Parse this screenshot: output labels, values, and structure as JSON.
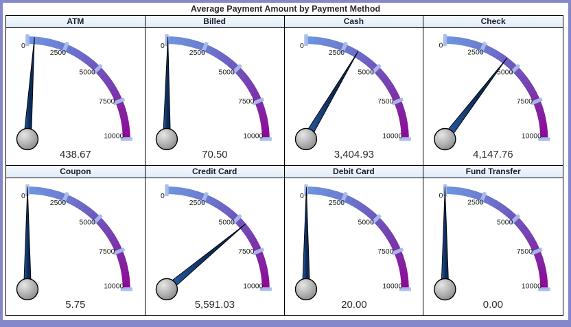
{
  "title": "Average Payment Amount by Payment Method",
  "gauge": {
    "min": 0,
    "max": 10000,
    "sweep_degrees": 90,
    "ticks": [
      0,
      2500,
      5000,
      7500,
      10000
    ],
    "tick_labels": [
      "0",
      "2500",
      "5000",
      "7500",
      "10000"
    ]
  },
  "panels": [
    {
      "label": "ATM",
      "value": 438.67,
      "display": "438.67"
    },
    {
      "label": "Billed",
      "value": 70.5,
      "display": "70.50"
    },
    {
      "label": "Cash",
      "value": 3404.93,
      "display": "3,404.93"
    },
    {
      "label": "Check",
      "value": 4147.76,
      "display": "4,147.76"
    },
    {
      "label": "Coupon",
      "value": 5.75,
      "display": "5.75"
    },
    {
      "label": "Credit Card",
      "value": 5591.03,
      "display": "5,591.03"
    },
    {
      "label": "Debit Card",
      "value": 20.0,
      "display": "20.00"
    },
    {
      "label": "Fund Transfer",
      "value": 0.0,
      "display": "0.00"
    }
  ],
  "colors": {
    "frame_border": "#8487ca",
    "grid_border": "#000000",
    "header_bg_top": "#f2f8fd",
    "header_bg_bottom": "#e2edf8",
    "header_text": "#1c1c30",
    "title_text": "#2b2b2b",
    "value_text": "#2b2b2b",
    "tick_label_text": "#1a1a1a",
    "arc_colors": [
      "#6F95E0",
      "#6B7BD0",
      "#6F55BC",
      "#7E2EA7",
      "#8F0795"
    ],
    "tick_mark": "#A9BCE9",
    "needle_light": "#2D62AE",
    "needle_dark": "#0C2A56",
    "needle_outline": "#000000",
    "hub_light": "#E6E6E6",
    "hub_mid": "#B5B5B5",
    "hub_dark": "#7E7E7E",
    "hub_outline": "#000000"
  },
  "chart_data": {
    "type": "gauge",
    "title": "Average Payment Amount by Payment Method",
    "layout": "2x4 grid of quarter-circle gauges",
    "categories": [
      "ATM",
      "Billed",
      "Cash",
      "Check",
      "Coupon",
      "Credit Card",
      "Debit Card",
      "Fund Transfer"
    ],
    "values": [
      438.67,
      70.5,
      3404.93,
      4147.76,
      5.75,
      5591.03,
      20.0,
      0.0
    ],
    "value_labels": [
      "438.67",
      "70.50",
      "3,404.93",
      "4,147.76",
      "5.75",
      "5,591.03",
      "20.00",
      "0.00"
    ],
    "axis_range": [
      0,
      10000
    ],
    "ticks": [
      0,
      2500,
      5000,
      7500,
      10000
    ],
    "needle_angle_degrees_from_vertical": [
      3.95,
      0.63,
      30.64,
      37.33,
      0.05,
      50.32,
      0.18,
      0.0
    ]
  }
}
